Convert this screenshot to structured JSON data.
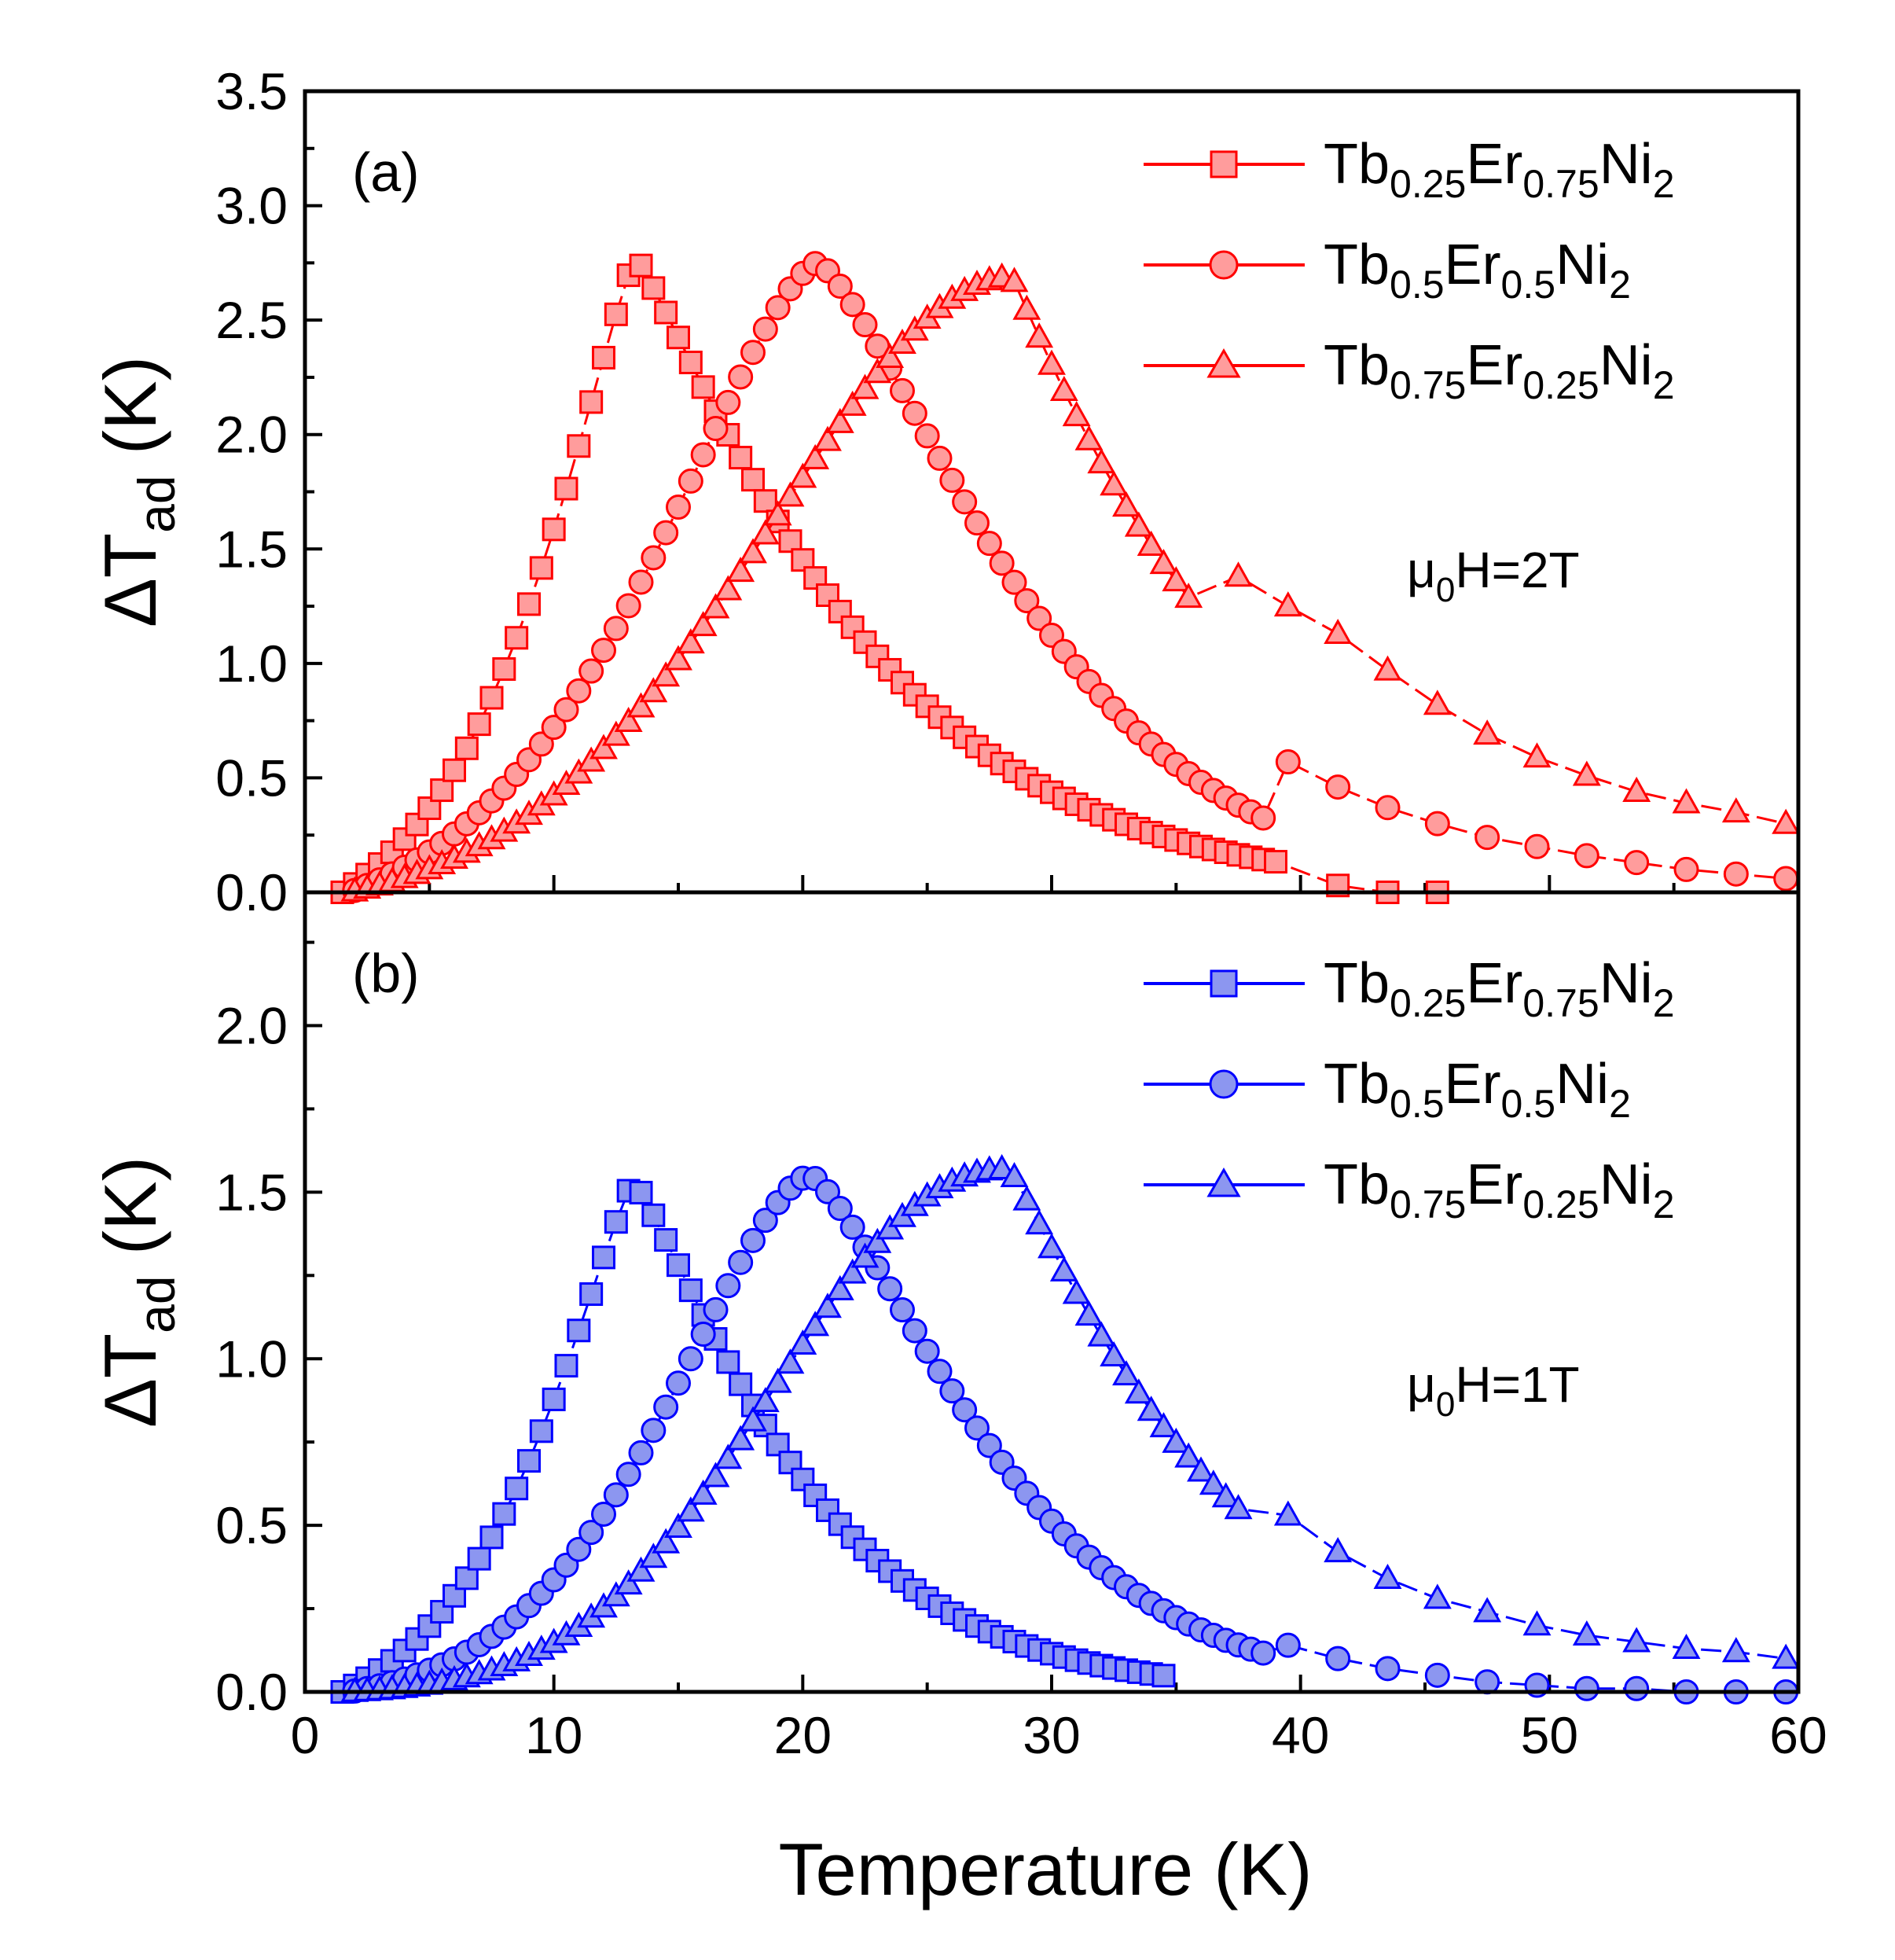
{
  "chart_data": [
    {
      "type": "line",
      "panel": "top",
      "panel_label": "(a)",
      "field_label": {
        "prefix": "μ",
        "sub": "0",
        "suffix": "H=2T"
      },
      "xlabel": "Temperature (K)",
      "ylabel": {
        "main": "ΔT",
        "sub": "ad",
        "unit": " (K)"
      },
      "xlim": [
        0,
        60
      ],
      "ylim": [
        0,
        3.5
      ],
      "xticks": [
        0,
        10,
        20,
        30,
        40,
        50,
        60
      ],
      "yticks": [
        0.0,
        0.5,
        1.0,
        1.5,
        2.0,
        2.5,
        3.0,
        3.5
      ],
      "ytick_labels": [
        "0.0",
        "0.5",
        "1.0",
        "1.5",
        "2.0",
        "2.5",
        "3.0",
        "3.5"
      ],
      "xtick_labels": [
        "0",
        "10",
        "20",
        "30",
        "40",
        "50",
        "60"
      ],
      "color": "#ff0000",
      "fill": "#ff9c9c",
      "series": [
        {
          "name": "Tb0.25Er0.75Ni2",
          "label_parts": [
            "Tb",
            "0.25",
            "Er",
            "0.75",
            "Ni",
            "2"
          ],
          "marker": "square",
          "dense": {
            "start": 1.5,
            "step": 0.5,
            "end": 39,
            "base": 1.5,
            "peak": 13.3,
            "amp": 2.77,
            "rise_w": 5.8,
            "rise_p": 1.25,
            "fall_w": 9.8,
            "fall_p": 1.15
          },
          "sparse_x": [
            41.5,
            43.5,
            45.5
          ],
          "sparse_y": [
            0.03,
            0.0,
            0.0
          ]
        },
        {
          "name": "Tb0.5Er0.5Ni2",
          "label_parts": [
            "Tb",
            "0.5",
            "Er",
            "0.5",
            "Ni",
            "2"
          ],
          "marker": "circle",
          "dense": {
            "start": 2.0,
            "step": 0.5,
            "end": 38.5,
            "base": 1.8,
            "peak": 20.6,
            "amp": 2.75,
            "rise_w": 9.5,
            "rise_p": 1.5,
            "fall_w": 10.2,
            "fall_p": 1.35
          },
          "sparse_x": [
            39.5,
            41.5,
            43.5,
            45.5,
            47.5,
            49.5,
            51.5,
            53.5,
            55.5,
            57.5,
            59.5
          ],
          "sparse_y": [
            0.57,
            0.46,
            0.37,
            0.3,
            0.24,
            0.2,
            0.16,
            0.13,
            0.1,
            0.08,
            0.06
          ]
        },
        {
          "name": "Tb0.75Er0.25Ni2",
          "label_parts": [
            "Tb",
            "0.75",
            "Er",
            "0.25",
            "Ni",
            "2"
          ],
          "marker": "triangle",
          "dense": {
            "start": 2.0,
            "step": 0.5,
            "end": 35.5,
            "base": 1.8,
            "peak": 28.4,
            "amp": 2.69,
            "rise_w": 14.0,
            "rise_p": 1.9,
            "fall_w": 9.5,
            "fall_p": 1.05
          },
          "sparse_x": [
            37.5,
            39.5,
            41.5,
            43.5,
            45.5,
            47.5,
            49.5,
            51.5,
            53.5,
            55.5,
            57.5,
            59.5
          ],
          "sparse_y": [
            1.38,
            1.25,
            1.13,
            0.97,
            0.82,
            0.69,
            0.59,
            0.51,
            0.44,
            0.39,
            0.35,
            0.3
          ]
        }
      ]
    },
    {
      "type": "line",
      "panel": "bottom",
      "panel_label": "(b)",
      "field_label": {
        "prefix": "μ",
        "sub": "0",
        "suffix": "H=1T"
      },
      "xlabel": "Temperature (K)",
      "ylabel": {
        "main": "ΔT",
        "sub": "ad",
        "unit": " (K)"
      },
      "xlim": [
        0,
        60
      ],
      "ylim": [
        0,
        2.4
      ],
      "xticks": [
        0,
        10,
        20,
        30,
        40,
        50,
        60
      ],
      "yticks": [
        0.0,
        0.5,
        1.0,
        1.5,
        2.0
      ],
      "ytick_labels": [
        "0.0",
        "0.5",
        "1.0",
        "1.5",
        "2.0"
      ],
      "xtick_labels": [
        "0",
        "10",
        "20",
        "30",
        "40",
        "50",
        "60"
      ],
      "color": "#0000ff",
      "fill": "#8c96f0",
      "series": [
        {
          "name": "Tb0.25Er0.75Ni2",
          "label_parts": [
            "Tb",
            "0.25",
            "Er",
            "0.75",
            "Ni",
            "2"
          ],
          "marker": "square",
          "dense": {
            "start": 1.5,
            "step": 0.5,
            "end": 34.5,
            "base": 1.5,
            "peak": 13.2,
            "amp": 1.53,
            "rise_w": 5.6,
            "rise_p": 1.25,
            "fall_w": 7.6,
            "fall_p": 1.2
          },
          "sparse_x": [],
          "sparse_y": []
        },
        {
          "name": "Tb0.5Er0.5Ni2",
          "label_parts": [
            "Tb",
            "0.5",
            "Er",
            "0.5",
            "Ni",
            "2"
          ],
          "marker": "circle",
          "dense": {
            "start": 2.0,
            "step": 0.5,
            "end": 38.5,
            "base": 1.8,
            "peak": 20.3,
            "amp": 1.55,
            "rise_w": 8.2,
            "rise_p": 1.6,
            "fall_w": 9.0,
            "fall_p": 1.35
          },
          "sparse_x": [
            39.5,
            41.5,
            43.5,
            45.5,
            47.5,
            49.5,
            51.5,
            53.5,
            55.5,
            57.5,
            59.5
          ],
          "sparse_y": [
            0.14,
            0.1,
            0.07,
            0.05,
            0.03,
            0.02,
            0.01,
            0.01,
            0.0,
            0.0,
            0.0
          ]
        },
        {
          "name": "Tb0.75Er0.25Ni2",
          "label_parts": [
            "Tb",
            "0.75",
            "Er",
            "0.25",
            "Ni",
            "2"
          ],
          "marker": "triangle",
          "dense": {
            "start": 2.0,
            "step": 0.5,
            "end": 37.5,
            "base": 1.8,
            "peak": 28.3,
            "amp": 1.57,
            "rise_w": 12.5,
            "rise_p": 2.2,
            "fall_w": 8.8,
            "fall_p": 1.1
          },
          "sparse_x": [
            39.5,
            41.5,
            43.5,
            45.5,
            47.5,
            49.5,
            51.5,
            53.5,
            55.5,
            57.5,
            59.5
          ],
          "sparse_y": [
            0.53,
            0.42,
            0.34,
            0.28,
            0.24,
            0.2,
            0.17,
            0.15,
            0.13,
            0.12,
            0.1
          ]
        }
      ]
    }
  ]
}
